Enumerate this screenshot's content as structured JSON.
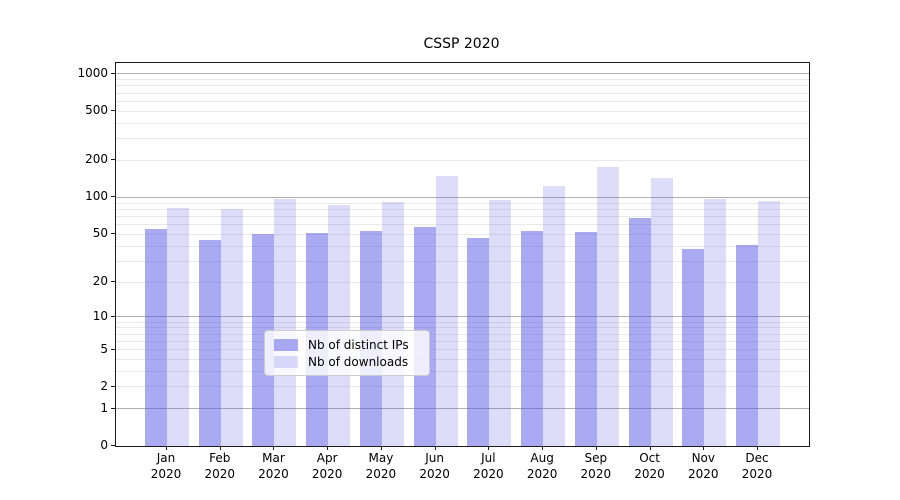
{
  "title": "CSSP 2020",
  "chart_data": {
    "type": "bar",
    "title": "CSSP 2020",
    "xlabel": "",
    "ylabel": "",
    "yscale": "log1p (y position proportional to log10(value+1))",
    "ylim": [
      0,
      1200
    ],
    "grid": "on",
    "legend_position": "lower center",
    "categories": [
      "Jan",
      "Feb",
      "Mar",
      "Apr",
      "May",
      "Jun",
      "Jul",
      "Aug",
      "Sep",
      "Oct",
      "Nov",
      "Dec"
    ],
    "year": "2020",
    "ytick_labels": [
      0,
      1,
      2,
      5,
      10,
      20,
      50,
      100,
      200,
      500,
      1000
    ],
    "series": [
      {
        "name": "Nb of distinct IPs",
        "color": "rgba(85,85,230,0.5)",
        "values": [
          55,
          45,
          50,
          51,
          53,
          57,
          47,
          53,
          52,
          68,
          38,
          41
        ]
      },
      {
        "name": "Nb of downloads",
        "color": "rgba(85,85,230,0.2)",
        "values": [
          82,
          80,
          98,
          86,
          92,
          150,
          96,
          123,
          178,
          145,
          97,
          94
        ]
      }
    ]
  },
  "colors": {
    "bar_dark": "rgba(85,85,230,0.5)",
    "bar_light": "rgba(85,85,230,0.2)",
    "grid_major": "#b0b0b0",
    "grid_minor": "#e9e9e9",
    "spine": "#1a1a1a",
    "legend_border": "#cccccc"
  }
}
